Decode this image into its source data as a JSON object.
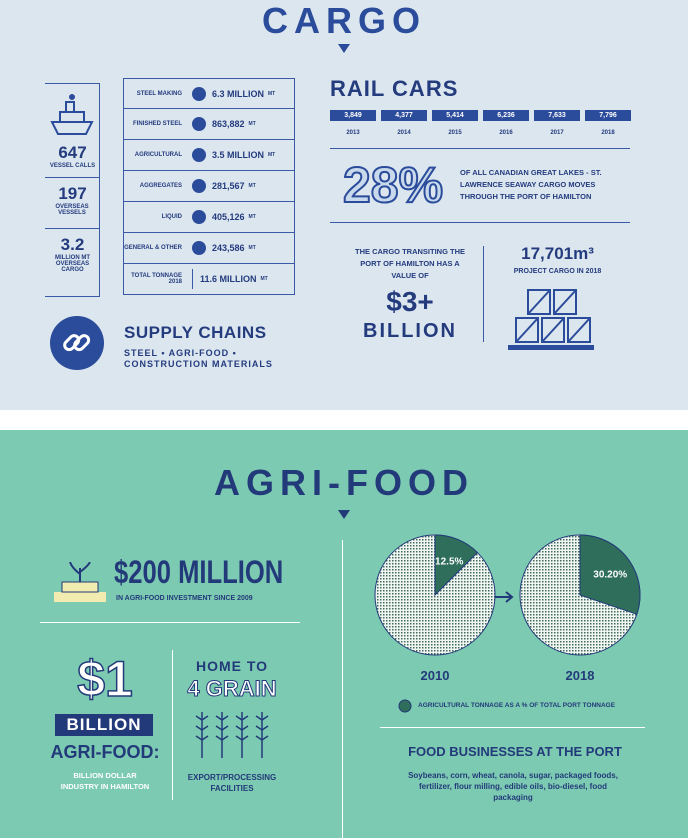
{
  "cargo": {
    "title": "CARGO",
    "vessels": [
      {
        "value": "647",
        "label": "VESSEL CALLS"
      },
      {
        "value": "197",
        "label": "OVERSEAS VESSELS"
      },
      {
        "value": "3.2",
        "label": "MILLION MT OVERSEAS CARGO"
      }
    ],
    "table": {
      "rows": [
        [
          "STEEL MAKING",
          "6.3 MILLION",
          "MT"
        ],
        [
          "FINISHED STEEL",
          "863,882",
          "MT"
        ],
        [
          "AGRICULTURAL",
          "3.5 MILLION",
          "MT"
        ],
        [
          "AGGREGATES",
          "281,567",
          "MT"
        ],
        [
          "LIQUID",
          "405,126",
          "MT"
        ],
        [
          "GENERAL & OTHER",
          "243,586",
          "MT"
        ],
        [
          "TOTAL TONNAGE 2018",
          "11.6 MILLION",
          "MT"
        ]
      ]
    },
    "supply_chains": {
      "title": "SUPPLY CHAINS",
      "text": "STEEL • AGRI-FOOD • CONSTRUCTION MATERIALS"
    },
    "rail_cars": {
      "title": "RAIL CARS",
      "items": [
        {
          "value": "3,849",
          "year": "2013"
        },
        {
          "value": "4,377",
          "year": "2014"
        },
        {
          "value": "5,414",
          "year": "2015"
        },
        {
          "value": "6,236",
          "year": "2016"
        },
        {
          "value": "7,633",
          "year": "2017"
        },
        {
          "value": "7,796",
          "year": "2018"
        }
      ]
    },
    "share": {
      "value": "28%",
      "text": "OF ALL CANADIAN GREAT LAKES - ST. LAWRENCE SEAWAY CARGO MOVES THROUGH THE PORT OF HAMILTON"
    },
    "cargo_value": {
      "text": "THE CARGO TRANSITING THE PORT OF HAMILTON HAS A VALUE OF",
      "amount": "$3+",
      "unit": "BILLION"
    },
    "project": {
      "value": "17,701m³",
      "label": "PROJECT CARGO IN 2018"
    }
  },
  "agri": {
    "title": "AGRI-FOOD",
    "investment": {
      "value": "$200 MILLION",
      "label": "IN AGRI-FOOD INVESTMENT SINCE 2009"
    },
    "industry": {
      "value": "$1",
      "unit": "BILLION",
      "title": "AGRI-FOOD:",
      "label": "BILLION DOLLAR INDUSTRY IN HAMILTON"
    },
    "grain": {
      "line1": "HOME TO",
      "line2": "4 GRAIN",
      "label": "EXPORT/PROCESSING FACILITIES"
    },
    "pies": {
      "items": [
        {
          "year": "2010",
          "value": 12.5,
          "value_label": "12.5%"
        },
        {
          "year": "2018",
          "value": 30.2,
          "value_label": "30.20%"
        }
      ],
      "legend": "AGRICULTURAL TONNAGE AS A % OF TOTAL PORT TONNAGE"
    },
    "food": {
      "title": "FOOD BUSINESSES AT THE PORT",
      "text": "Soybeans, corn, wheat, canola, sugar, packaged foods, fertilizer, flour milling, edible oils, bio-diesel, food packaging"
    }
  }
}
